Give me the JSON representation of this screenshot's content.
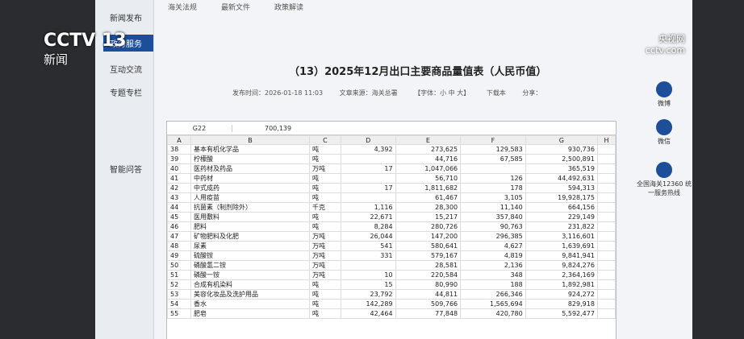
{
  "broadcast": {
    "channel": "CCTV 13",
    "channel_sub": "新闻",
    "site": "央视网",
    "site_sub": "cctv.com"
  },
  "top_tabs": [
    "海关法规",
    "最新文件",
    "政策解读"
  ],
  "sidebar": [
    "新闻发布",
    "政务服务",
    "互动交流",
    "专题专栏"
  ],
  "assistant": "智能问答",
  "article": {
    "title": "（13）2025年12月出口主要商品量值表（人民币值）",
    "published": "发布时间：2026-01-18 11:03",
    "source": "文章来源：海关总署",
    "font_size": "【字体：小 中 大】",
    "download": "下载本",
    "share": "分享："
  },
  "right_rail": {
    "weibo": "微博",
    "wechat": "微信",
    "hotline": "全国海关12360 统一服务热线"
  },
  "sheet": {
    "cell_ref": "G22",
    "formula": "700,139",
    "columns": [
      "A",
      "B",
      "C",
      "D",
      "E",
      "F",
      "G",
      "H"
    ],
    "rows": [
      [
        "38",
        "基本有机化学品",
        "吨",
        "4,392",
        "273,625",
        "129,583",
        "930,736"
      ],
      [
        "39",
        "柠檬酸",
        "吨",
        "",
        "44,716",
        "67,585",
        "2,500,891"
      ],
      [
        "40",
        "医药材及药品",
        "万吨",
        "17",
        "1,047,066",
        "",
        "365,519"
      ],
      [
        "41",
        "中药材",
        "吨",
        "",
        "56,710",
        "126",
        "44,492,631"
      ],
      [
        "42",
        "中式成药",
        "吨",
        "17",
        "1,811,682",
        "178",
        "594,313"
      ],
      [
        "43",
        "人用疫苗",
        "吨",
        "",
        "61,467",
        "3,105",
        "19,928,175"
      ],
      [
        "44",
        "抗菌素（制剂除外）",
        "千克",
        "1,116",
        "28,300",
        "11,140",
        "664,156"
      ],
      [
        "45",
        "医用敷料",
        "吨",
        "22,671",
        "15,217",
        "357,840",
        "229,149"
      ],
      [
        "46",
        "肥料",
        "吨",
        "8,284",
        "280,726",
        "90,763",
        "231,822"
      ],
      [
        "47",
        "矿物肥料及化肥",
        "万吨",
        "26,044",
        "147,200",
        "296,385",
        "3,116,601"
      ],
      [
        "48",
        "尿素",
        "万吨",
        "541",
        "580,641",
        "4,627",
        "1,639,691"
      ],
      [
        "49",
        "硫酸铵",
        "万吨",
        "331",
        "579,167",
        "4,819",
        "9,841,941"
      ],
      [
        "50",
        "磷酸氢二铵",
        "万吨",
        "",
        "28,581",
        "2,136",
        "9,824,276"
      ],
      [
        "51",
        "磷酸一铵",
        "万吨",
        "10",
        "220,584",
        "348",
        "2,364,169"
      ],
      [
        "52",
        "合成有机染料",
        "吨",
        "15",
        "80,990",
        "188",
        "1,892,981"
      ],
      [
        "53",
        "美容化妆品及洗护用品",
        "吨",
        "23,792",
        "44,811",
        "266,346",
        "924,272"
      ],
      [
        "54",
        "香水",
        "吨",
        "142,289",
        "509,766",
        "1,565,694",
        "829,918"
      ],
      [
        "55",
        "肥皂",
        "吨",
        "42,464",
        "77,848",
        "420,780",
        "5,592,477"
      ]
    ]
  }
}
